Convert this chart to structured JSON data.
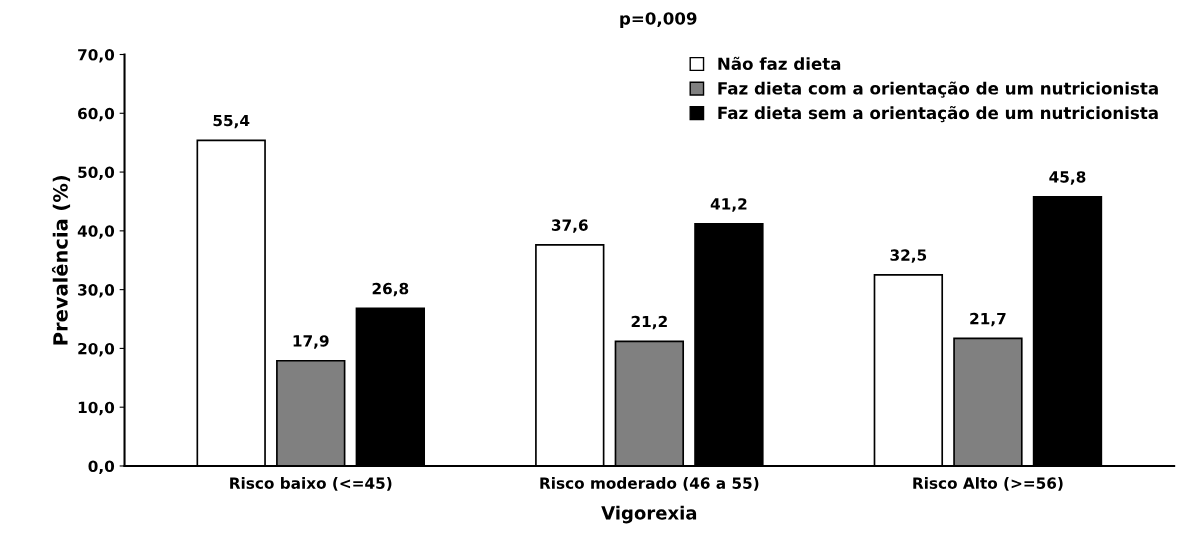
{
  "chart_data": {
    "type": "bar",
    "title": "p=0,009",
    "xlabel": "Vigorexia",
    "ylabel": "Prevalência (%)",
    "categories": [
      "Risco baixo (<=45)",
      "Risco moderado (46 a 55)",
      "Risco Alto (>=56)"
    ],
    "series": [
      {
        "name": "Não faz dieta",
        "color": "#ffffff",
        "values": [
          55.4,
          37.6,
          32.5
        ],
        "value_labels": [
          "55,4",
          "37,6",
          "32,5"
        ]
      },
      {
        "name": "Faz dieta com a orientação de um nutricionista",
        "color": "#808080",
        "values": [
          17.9,
          21.2,
          21.7
        ],
        "value_labels": [
          "17,9",
          "21,2",
          "21,7"
        ]
      },
      {
        "name": "Faz dieta sem a orientação de um nutricionista",
        "color": "#000000",
        "values": [
          26.8,
          41.2,
          45.8
        ],
        "value_labels": [
          "26,8",
          "41,2",
          "45,8"
        ]
      }
    ],
    "ylim": [
      0,
      70
    ],
    "yticks": [
      {
        "value": 0,
        "label": "0,0"
      },
      {
        "value": 10,
        "label": "10,0"
      },
      {
        "value": 20,
        "label": "20,0"
      },
      {
        "value": 30,
        "label": "30,0"
      },
      {
        "value": 40,
        "label": "40,0"
      },
      {
        "value": 50,
        "label": "50,0"
      },
      {
        "value": 60,
        "label": "60,0"
      },
      {
        "value": 70,
        "label": "70,0"
      }
    ],
    "grid": false,
    "legend": "top right"
  }
}
